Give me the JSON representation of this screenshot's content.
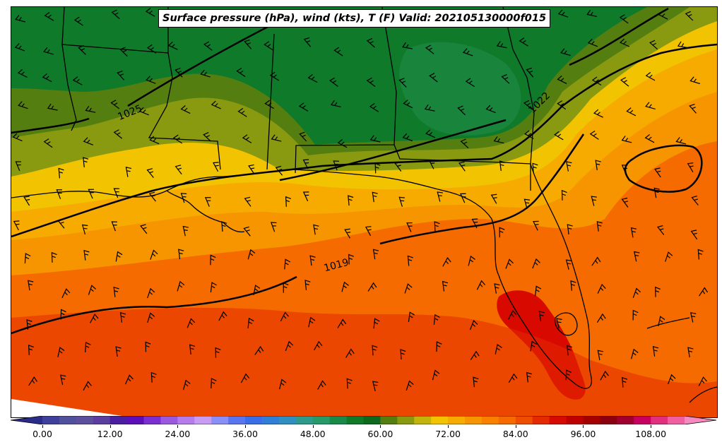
{
  "map": {
    "title": "Surface pressure (hPa), wind (kts), T (F) Valid: 202105130000f015",
    "isobar_labels": [
      "1025",
      "1022",
      "1019"
    ],
    "colorbar": {
      "ticks": [
        "0.00",
        "12.00",
        "24.00",
        "36.00",
        "48.00",
        "60.00",
        "72.00",
        "84.00",
        "96.00",
        "108.00"
      ],
      "colors": [
        "#2b2b8a",
        "#3f3f9c",
        "#50509c",
        "#5c4f9c",
        "#5a3f9e",
        "#4a1ea0",
        "#5b0fb8",
        "#7a2fd0",
        "#9b59e0",
        "#b57cec",
        "#c79cf2",
        "#8a8ff7",
        "#5a75f0",
        "#3a6ee8",
        "#2f7fd6",
        "#2f8fbf",
        "#2e9a8a",
        "#279a6a",
        "#1a8a4a",
        "#0f7a2a",
        "#0c6a1e",
        "#547f10",
        "#8a9a10",
        "#c2b40a",
        "#f2c300",
        "#f7aa00",
        "#f69500",
        "#fa8000",
        "#f56b00",
        "#ee4e00",
        "#e42a00",
        "#d60a00",
        "#bf0000",
        "#a30000",
        "#8a0010",
        "#a00030",
        "#c80060",
        "#e0307e",
        "#f060a0",
        "#f58ac0"
      ]
    },
    "colors": {
      "dark_green": "#0f7a2a",
      "green": "#1a8a3a",
      "olive_green": "#547f10",
      "olive": "#8a9a10",
      "yellow": "#f2c300",
      "light_orange": "#f7aa00",
      "orange": "#f69500",
      "deep_orange": "#f56b00",
      "red_orange": "#e42a00",
      "red": "#c80000"
    }
  }
}
